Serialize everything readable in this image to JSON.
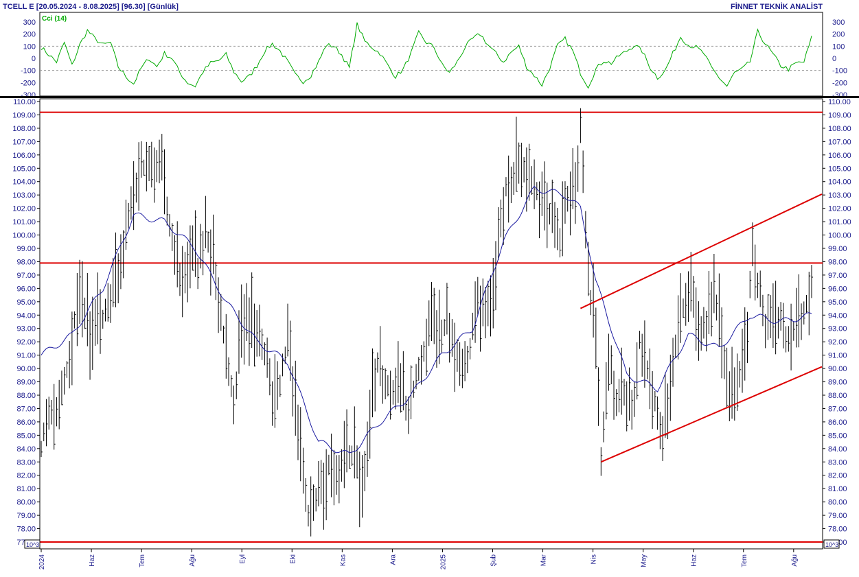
{
  "header": {
    "title": "TCELL E  [20.05.2024 - 8.08.2025]  [96.30]  [Günlük]",
    "brand": "FİNNET TEKNİK ANALİST"
  },
  "cci_panel": {
    "name": "Cci (14)",
    "line_color": "#00aa00",
    "ticks": [
      "300",
      "200",
      "100",
      "0",
      "-100",
      "-200",
      "-300"
    ]
  },
  "price_scale_tag": "10^3",
  "colors": {
    "ink": "#1c1c8c",
    "bars": "#000000",
    "moving_average": "#1a1aa0",
    "trend_lines": "#dd0000",
    "cci": "#00aa00"
  },
  "chart_data": {
    "type": "bar",
    "subtype": "ohlc-price-chart-with-moving-average-and-cci",
    "price_range": [
      77,
      110
    ],
    "price_ticks": [
      "110.00",
      "109.00",
      "108.00",
      "107.00",
      "106.00",
      "105.00",
      "104.00",
      "103.00",
      "102.00",
      "101.00",
      "100.00",
      "99.00",
      "98.00",
      "97.00",
      "96.00",
      "95.00",
      "94.00",
      "93.00",
      "92.00",
      "91.00",
      "90.00",
      "89.00",
      "88.00",
      "87.00",
      "86.00",
      "85.00",
      "84.00",
      "83.00",
      "82.00",
      "81.00",
      "80.00",
      "79.00",
      "78.00",
      "77.00"
    ],
    "x_ticks": [
      "2024",
      "Haz",
      "Tem",
      "Ağu",
      "Eyl",
      "Eki",
      "Kas",
      "Ara",
      "2025",
      "Şub",
      "Mar",
      "Nis",
      "May",
      "Haz",
      "Tem",
      "Ağu"
    ],
    "price_path": [
      [
        0,
        84.0
      ],
      [
        3,
        87.0
      ],
      [
        6,
        86.5
      ],
      [
        9,
        89.0
      ],
      [
        12,
        92.0
      ],
      [
        14,
        95.0
      ],
      [
        17,
        94.0
      ],
      [
        20,
        92.5
      ],
      [
        23,
        93.5
      ],
      [
        26,
        95.0
      ],
      [
        29,
        96.0
      ],
      [
        32,
        99.0
      ],
      [
        35,
        102.0
      ],
      [
        38,
        105.0
      ],
      [
        41,
        105.5
      ],
      [
        44,
        104.5
      ],
      [
        47,
        106.5
      ],
      [
        49,
        101.5
      ],
      [
        52,
        99.0
      ],
      [
        55,
        96.0
      ],
      [
        58,
        99.5
      ],
      [
        61,
        97.5
      ],
      [
        64,
        100.0
      ],
      [
        67,
        98.5
      ],
      [
        70,
        94.0
      ],
      [
        73,
        89.5
      ],
      [
        75,
        87.5
      ],
      [
        78,
        92.5
      ],
      [
        81,
        94.0
      ],
      [
        84,
        93.5
      ],
      [
        87,
        91.5
      ],
      [
        90,
        87.5
      ],
      [
        93,
        89.0
      ],
      [
        96,
        92.0
      ],
      [
        98,
        89.0
      ],
      [
        101,
        84.0
      ],
      [
        104,
        79.0
      ],
      [
        107,
        80.5
      ],
      [
        110,
        81.5
      ],
      [
        113,
        83.0
      ],
      [
        116,
        82.5
      ],
      [
        119,
        83.5
      ],
      [
        122,
        84.0
      ],
      [
        125,
        80.5
      ],
      [
        128,
        87.0
      ],
      [
        131,
        90.5
      ],
      [
        134,
        88.5
      ],
      [
        137,
        88.0
      ],
      [
        140,
        89.0
      ],
      [
        143,
        86.5
      ],
      [
        146,
        89.5
      ],
      [
        149,
        91.0
      ],
      [
        152,
        93.5
      ],
      [
        155,
        92.0
      ],
      [
        158,
        94.0
      ],
      [
        161,
        91.0
      ],
      [
        164,
        90.0
      ],
      [
        167,
        91.5
      ],
      [
        170,
        95.5
      ],
      [
        173,
        93.5
      ],
      [
        176,
        96.5
      ],
      [
        178,
        99.5
      ],
      [
        181,
        103.5
      ],
      [
        184,
        104.5
      ],
      [
        187,
        105.5
      ],
      [
        190,
        104.0
      ],
      [
        193,
        103.0
      ],
      [
        196,
        102.5
      ],
      [
        199,
        101.5
      ],
      [
        202,
        99.5
      ],
      [
        205,
        103.0
      ],
      [
        208,
        103.5
      ],
      [
        210,
        108.0
      ],
      [
        213,
        96.5
      ],
      [
        216,
        92.5
      ],
      [
        218,
        83.5
      ],
      [
        221,
        91.0
      ],
      [
        224,
        87.5
      ],
      [
        227,
        88.5
      ],
      [
        230,
        86.5
      ],
      [
        233,
        92.0
      ],
      [
        236,
        90.0
      ],
      [
        239,
        87.5
      ],
      [
        242,
        85.0
      ],
      [
        245,
        89.0
      ],
      [
        248,
        93.0
      ],
      [
        251,
        95.5
      ],
      [
        254,
        96.0
      ],
      [
        256,
        92.5
      ],
      [
        259,
        93.5
      ],
      [
        262,
        96.0
      ],
      [
        265,
        92.0
      ],
      [
        268,
        88.0
      ],
      [
        271,
        88.5
      ],
      [
        274,
        90.5
      ],
      [
        277,
        98.5
      ],
      [
        280,
        95.5
      ],
      [
        282,
        92.5
      ],
      [
        285,
        94.0
      ],
      [
        288,
        93.5
      ],
      [
        291,
        92.0
      ],
      [
        294,
        93.5
      ],
      [
        297,
        94.5
      ],
      [
        300,
        96.3
      ]
    ],
    "cci_range": [
      -300,
      300
    ],
    "cci_path": [
      [
        0,
        90
      ],
      [
        3,
        30
      ],
      [
        6,
        -30
      ],
      [
        9,
        130
      ],
      [
        12,
        -60
      ],
      [
        15,
        110
      ],
      [
        18,
        230
      ],
      [
        21,
        160
      ],
      [
        24,
        110
      ],
      [
        27,
        130
      ],
      [
        30,
        -70
      ],
      [
        33,
        -150
      ],
      [
        36,
        -210
      ],
      [
        39,
        -80
      ],
      [
        42,
        0
      ],
      [
        45,
        -70
      ],
      [
        48,
        40
      ],
      [
        51,
        0
      ],
      [
        54,
        -120
      ],
      [
        57,
        -200
      ],
      [
        60,
        -230
      ],
      [
        63,
        -110
      ],
      [
        66,
        -40
      ],
      [
        69,
        -20
      ],
      [
        72,
        30
      ],
      [
        75,
        -110
      ],
      [
        78,
        -190
      ],
      [
        81,
        -150
      ],
      [
        84,
        -60
      ],
      [
        87,
        60
      ],
      [
        90,
        120
      ],
      [
        93,
        60
      ],
      [
        96,
        -30
      ],
      [
        99,
        -140
      ],
      [
        102,
        -190
      ],
      [
        105,
        -140
      ],
      [
        108,
        -30
      ],
      [
        111,
        110
      ],
      [
        114,
        100
      ],
      [
        117,
        30
      ],
      [
        120,
        -80
      ],
      [
        123,
        280
      ],
      [
        126,
        140
      ],
      [
        129,
        90
      ],
      [
        132,
        40
      ],
      [
        135,
        -60
      ],
      [
        138,
        -150
      ],
      [
        141,
        -90
      ],
      [
        144,
        40
      ],
      [
        147,
        210
      ],
      [
        150,
        130
      ],
      [
        153,
        90
      ],
      [
        156,
        -50
      ],
      [
        159,
        -120
      ],
      [
        162,
        -30
      ],
      [
        165,
        90
      ],
      [
        168,
        160
      ],
      [
        171,
        200
      ],
      [
        174,
        110
      ],
      [
        177,
        40
      ],
      [
        180,
        -30
      ],
      [
        183,
        50
      ],
      [
        186,
        100
      ],
      [
        189,
        -70
      ],
      [
        192,
        -140
      ],
      [
        195,
        -220
      ],
      [
        198,
        -80
      ],
      [
        201,
        100
      ],
      [
        204,
        160
      ],
      [
        207,
        60
      ],
      [
        210,
        -120
      ],
      [
        213,
        -230
      ],
      [
        216,
        -90
      ],
      [
        219,
        -20
      ],
      [
        222,
        -40
      ],
      [
        225,
        20
      ],
      [
        228,
        60
      ],
      [
        231,
        110
      ],
      [
        234,
        60
      ],
      [
        237,
        -70
      ],
      [
        240,
        -160
      ],
      [
        243,
        -100
      ],
      [
        246,
        40
      ],
      [
        249,
        180
      ],
      [
        252,
        110
      ],
      [
        255,
        90
      ],
      [
        258,
        40
      ],
      [
        261,
        -80
      ],
      [
        264,
        -160
      ],
      [
        267,
        -230
      ],
      [
        270,
        -120
      ],
      [
        273,
        -90
      ],
      [
        276,
        -30
      ],
      [
        279,
        220
      ],
      [
        282,
        120
      ],
      [
        285,
        30
      ],
      [
        288,
        -60
      ],
      [
        291,
        -90
      ],
      [
        294,
        -40
      ],
      [
        297,
        -30
      ],
      [
        300,
        170
      ]
    ],
    "ma_path": [
      [
        0,
        91.0
      ],
      [
        12,
        92.5
      ],
      [
        24,
        96.0
      ],
      [
        36,
        101.5
      ],
      [
        48,
        101.0
      ],
      [
        60,
        99.0
      ],
      [
        72,
        95.0
      ],
      [
        84,
        92.0
      ],
      [
        96,
        90.5
      ],
      [
        108,
        84.5
      ],
      [
        120,
        83.5
      ],
      [
        132,
        86.0
      ],
      [
        144,
        88.0
      ],
      [
        156,
        91.0
      ],
      [
        168,
        93.0
      ],
      [
        180,
        99.5
      ],
      [
        192,
        103.5
      ],
      [
        204,
        103.0
      ],
      [
        210,
        102.0
      ],
      [
        216,
        96.5
      ],
      [
        228,
        89.5
      ],
      [
        240,
        88.5
      ],
      [
        252,
        92.5
      ],
      [
        264,
        91.5
      ],
      [
        276,
        94.0
      ],
      [
        288,
        93.5
      ],
      [
        300,
        94.0
      ]
    ],
    "horizontal_lines": [
      109.2,
      97.9,
      77.0
    ],
    "channel_upper": [
      [
        210,
        94.5
      ],
      [
        300,
        102.7
      ]
    ],
    "channel_lower": [
      [
        218,
        83.0
      ],
      [
        300,
        89.8
      ]
    ]
  }
}
